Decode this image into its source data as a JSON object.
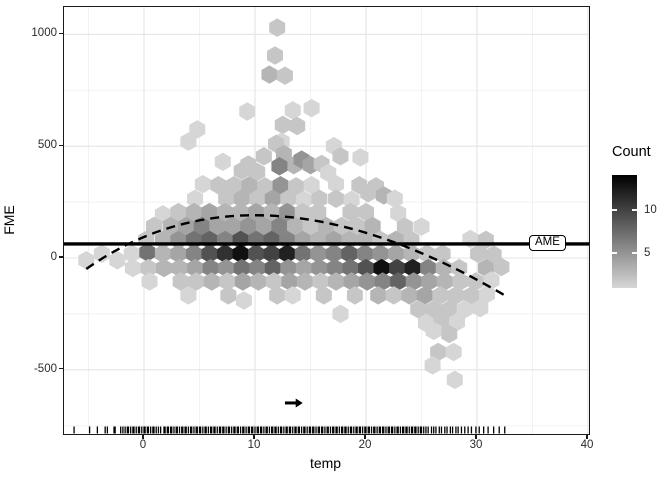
{
  "chart_data": {
    "type": "hexbin",
    "title": "",
    "xlabel": "temp",
    "ylabel": "FME",
    "x_major_ticks": [
      0,
      10,
      20,
      30,
      40
    ],
    "x_minor_ticks": [
      -5,
      5,
      15,
      25,
      35
    ],
    "y_major_ticks": [
      1000,
      500,
      0,
      -500
    ],
    "y_minor_ticks": [
      750,
      250,
      -250,
      -750
    ],
    "xlim": [
      -7.2,
      40.1
    ],
    "ylim": [
      -790,
      1120
    ],
    "grid": "on",
    "legend": {
      "title": "Count",
      "position": "right",
      "ticks": [
        10,
        5
      ],
      "domain": [
        1,
        14
      ],
      "color_low": "#d6d6d6",
      "color_high": "#000000"
    },
    "ame_line": {
      "label": "AME",
      "value": 63,
      "style": "solid",
      "color": "#000000"
    },
    "smooth_curve": {
      "style": "dashed",
      "color": "#000000",
      "points": [
        [
          -5.2,
          -49
        ],
        [
          11.9,
          188
        ],
        [
          32.6,
          -170
        ]
      ]
    },
    "arrow_annotation": {
      "x1": 12.7,
      "x2": 14.3,
      "y": -648,
      "direction": "right"
    },
    "hexbins": [
      [
        12.0,
        1030,
        2
      ],
      [
        11.8,
        905,
        2
      ],
      [
        11.3,
        820,
        3
      ],
      [
        12.7,
        815,
        2
      ],
      [
        9.3,
        655,
        1
      ],
      [
        13.4,
        660,
        1
      ],
      [
        12.5,
        595,
        2
      ],
      [
        13.8,
        590,
        2
      ],
      [
        12.4,
        520,
        1
      ],
      [
        15.1,
        670,
        1
      ],
      [
        4.8,
        575,
        1
      ],
      [
        4.0,
        520,
        1
      ],
      [
        11.9,
        510,
        2
      ],
      [
        12.6,
        465,
        3
      ],
      [
        7.1,
        430,
        1
      ],
      [
        9.4,
        418,
        2
      ],
      [
        10.8,
        455,
        2
      ],
      [
        13.5,
        415,
        3
      ],
      [
        14.2,
        440,
        5
      ],
      [
        15.0,
        415,
        4
      ],
      [
        16.0,
        420,
        2
      ],
      [
        17.1,
        500,
        1
      ],
      [
        17.7,
        455,
        2
      ],
      [
        12.2,
        410,
        6
      ],
      [
        19.5,
        450,
        1
      ],
      [
        5.3,
        330,
        1
      ],
      [
        6.7,
        325,
        2
      ],
      [
        8.1,
        325,
        2
      ],
      [
        9.5,
        325,
        3
      ],
      [
        10.9,
        320,
        2
      ],
      [
        12.3,
        325,
        5
      ],
      [
        13.7,
        320,
        2
      ],
      [
        15.1,
        325,
        1
      ],
      [
        17.3,
        330,
        1
      ],
      [
        19.4,
        325,
        2
      ],
      [
        20.9,
        320,
        2
      ],
      [
        8.8,
        390,
        2
      ],
      [
        10.2,
        385,
        2
      ],
      [
        16.6,
        380,
        1
      ],
      [
        4.6,
        265,
        1
      ],
      [
        7.4,
        265,
        2
      ],
      [
        8.8,
        265,
        3
      ],
      [
        10.2,
        265,
        2
      ],
      [
        11.6,
        265,
        4
      ],
      [
        13.0,
        265,
        2
      ],
      [
        14.4,
        260,
        1
      ],
      [
        15.8,
        265,
        2
      ],
      [
        17.3,
        265,
        2
      ],
      [
        18.7,
        260,
        1
      ],
      [
        20.2,
        290,
        2
      ],
      [
        21.6,
        280,
        3
      ],
      [
        22.6,
        265,
        1
      ],
      [
        1.7,
        195,
        1
      ],
      [
        3.1,
        205,
        2
      ],
      [
        4.5,
        205,
        3
      ],
      [
        5.9,
        205,
        4
      ],
      [
        7.3,
        205,
        3
      ],
      [
        8.7,
        205,
        3
      ],
      [
        10.1,
        205,
        4
      ],
      [
        11.5,
        205,
        3
      ],
      [
        12.9,
        205,
        5
      ],
      [
        14.3,
        205,
        2
      ],
      [
        15.7,
        205,
        2
      ],
      [
        18.6,
        205,
        2
      ],
      [
        20.0,
        205,
        2
      ],
      [
        22.9,
        200,
        1
      ],
      [
        0.9,
        143,
        2
      ],
      [
        2.4,
        143,
        3
      ],
      [
        3.8,
        143,
        4
      ],
      [
        5.2,
        143,
        6
      ],
      [
        6.6,
        143,
        4
      ],
      [
        8.0,
        143,
        4
      ],
      [
        9.4,
        143,
        5
      ],
      [
        10.8,
        143,
        4
      ],
      [
        12.2,
        143,
        6
      ],
      [
        13.6,
        143,
        3
      ],
      [
        15.0,
        143,
        2
      ],
      [
        16.4,
        143,
        3
      ],
      [
        17.8,
        143,
        2
      ],
      [
        19.2,
        143,
        2
      ],
      [
        20.6,
        143,
        3
      ],
      [
        23.5,
        140,
        2
      ],
      [
        25.0,
        140,
        1
      ],
      [
        0.2,
        81,
        2
      ],
      [
        1.7,
        81,
        3
      ],
      [
        3.1,
        81,
        5
      ],
      [
        4.5,
        81,
        7
      ],
      [
        5.9,
        81,
        8
      ],
      [
        7.3,
        81,
        6
      ],
      [
        8.7,
        81,
        9
      ],
      [
        10.1,
        81,
        7
      ],
      [
        11.5,
        81,
        8
      ],
      [
        12.9,
        81,
        6
      ],
      [
        14.3,
        81,
        4
      ],
      [
        15.7,
        81,
        3
      ],
      [
        17.1,
        81,
        4
      ],
      [
        18.5,
        81,
        3
      ],
      [
        19.9,
        81,
        3
      ],
      [
        21.3,
        81,
        2
      ],
      [
        22.7,
        81,
        3
      ],
      [
        24.1,
        81,
        2
      ],
      [
        29.4,
        85,
        1
      ],
      [
        30.8,
        81,
        2
      ],
      [
        -3.8,
        19,
        1
      ],
      [
        -1.1,
        19,
        1
      ],
      [
        0.3,
        25,
        7
      ],
      [
        1.7,
        19,
        3
      ],
      [
        3.1,
        19,
        4
      ],
      [
        4.5,
        19,
        6
      ],
      [
        5.9,
        19,
        9
      ],
      [
        7.3,
        19,
        11
      ],
      [
        8.7,
        19,
        13
      ],
      [
        10.1,
        19,
        9
      ],
      [
        11.5,
        19,
        10
      ],
      [
        12.9,
        19,
        12
      ],
      [
        14.3,
        19,
        7
      ],
      [
        15.7,
        19,
        5
      ],
      [
        17.1,
        19,
        6
      ],
      [
        18.5,
        19,
        8
      ],
      [
        19.9,
        19,
        6
      ],
      [
        21.3,
        19,
        5
      ],
      [
        22.7,
        19,
        4
      ],
      [
        24.1,
        19,
        3
      ],
      [
        25.5,
        19,
        2
      ],
      [
        26.9,
        19,
        2
      ],
      [
        30.1,
        19,
        2
      ],
      [
        31.5,
        15,
        2
      ],
      [
        -5.2,
        -10,
        1
      ],
      [
        -2.4,
        -10,
        1
      ],
      [
        -1.0,
        -45,
        1
      ],
      [
        0.4,
        -45,
        2
      ],
      [
        1.8,
        -45,
        3
      ],
      [
        3.2,
        -45,
        3
      ],
      [
        4.6,
        -45,
        4
      ],
      [
        6.0,
        -45,
        6
      ],
      [
        7.4,
        -45,
        5
      ],
      [
        8.8,
        -45,
        7
      ],
      [
        10.2,
        -45,
        6
      ],
      [
        11.6,
        -45,
        8
      ],
      [
        13.0,
        -45,
        5
      ],
      [
        14.4,
        -45,
        4
      ],
      [
        15.8,
        -45,
        5
      ],
      [
        17.2,
        -45,
        6
      ],
      [
        18.6,
        -45,
        7
      ],
      [
        20.0,
        -45,
        9
      ],
      [
        21.4,
        -45,
        13
      ],
      [
        22.8,
        -45,
        10
      ],
      [
        24.2,
        -45,
        12
      ],
      [
        25.6,
        -45,
        6
      ],
      [
        27.0,
        -45,
        3
      ],
      [
        28.4,
        -45,
        2
      ],
      [
        30.8,
        -45,
        3
      ],
      [
        32.2,
        -40,
        2
      ],
      [
        0.5,
        -105,
        1
      ],
      [
        3.3,
        -105,
        2
      ],
      [
        4.7,
        -105,
        2
      ],
      [
        6.1,
        -105,
        3
      ],
      [
        7.5,
        -105,
        2
      ],
      [
        8.9,
        -105,
        4
      ],
      [
        10.3,
        -105,
        3
      ],
      [
        11.7,
        -105,
        2
      ],
      [
        13.1,
        -105,
        4
      ],
      [
        14.5,
        -105,
        3
      ],
      [
        15.9,
        -105,
        2
      ],
      [
        17.3,
        -105,
        3
      ],
      [
        18.7,
        -105,
        4
      ],
      [
        20.1,
        -105,
        5
      ],
      [
        21.5,
        -105,
        6
      ],
      [
        22.9,
        -105,
        8
      ],
      [
        24.3,
        -105,
        5
      ],
      [
        25.7,
        -105,
        4
      ],
      [
        27.1,
        -105,
        3
      ],
      [
        28.5,
        -105,
        2
      ],
      [
        29.9,
        -105,
        2
      ],
      [
        31.3,
        -100,
        1
      ],
      [
        4.0,
        -167,
        1
      ],
      [
        7.6,
        -167,
        2
      ],
      [
        12.0,
        -167,
        2
      ],
      [
        13.4,
        -167,
        1
      ],
      [
        16.2,
        -167,
        2
      ],
      [
        19.0,
        -167,
        2
      ],
      [
        21.1,
        -167,
        3
      ],
      [
        22.5,
        -167,
        2
      ],
      [
        23.9,
        -167,
        3
      ],
      [
        25.3,
        -167,
        4
      ],
      [
        26.7,
        -167,
        2
      ],
      [
        28.1,
        -167,
        2
      ],
      [
        29.5,
        -167,
        2
      ],
      [
        30.9,
        -162,
        1
      ],
      [
        9.0,
        -190,
        1
      ],
      [
        17.7,
        -250,
        1
      ],
      [
        24.7,
        -229,
        2
      ],
      [
        26.1,
        -229,
        2
      ],
      [
        27.5,
        -229,
        2
      ],
      [
        28.9,
        -229,
        1
      ],
      [
        30.3,
        -224,
        1
      ],
      [
        25.4,
        -291,
        1
      ],
      [
        26.8,
        -291,
        2
      ],
      [
        28.2,
        -286,
        1
      ],
      [
        26.1,
        -326,
        1
      ],
      [
        27.5,
        -340,
        2
      ],
      [
        26.5,
        -420,
        2
      ],
      [
        27.9,
        -420,
        1
      ],
      [
        26.0,
        -480,
        1
      ],
      [
        28.0,
        -545,
        1
      ]
    ],
    "rug_x": [
      -6.3,
      -4.9,
      -4.2,
      -3.5,
      -3.3,
      -2.7,
      -2.6,
      -2.1,
      -1.9,
      -1.7,
      -1.5,
      -1.4,
      -1.2,
      -1.0,
      -0.9,
      -0.7,
      -0.5,
      -0.4,
      -0.2,
      0.0,
      0.1,
      0.3,
      0.4,
      0.6,
      0.8,
      0.9,
      1.1,
      1.3,
      1.5,
      1.8,
      1.9,
      2.1,
      2.2,
      2.4,
      2.5,
      2.7,
      2.9,
      3.0,
      3.2,
      3.4,
      3.5,
      3.7,
      3.8,
      4.0,
      4.2,
      4.3,
      4.5,
      4.7,
      4.8,
      5.0,
      5.1,
      5.3,
      5.5,
      5.6,
      5.8,
      6.0,
      6.1,
      6.3,
      6.4,
      6.6,
      6.8,
      6.9,
      7.1,
      7.2,
      7.4,
      7.6,
      7.7,
      7.9,
      8.1,
      8.2,
      8.4,
      8.5,
      8.7,
      8.9,
      9.0,
      9.2,
      9.4,
      9.5,
      9.7,
      9.8,
      10.0,
      10.2,
      10.3,
      10.5,
      10.6,
      10.8,
      11.0,
      11.1,
      11.3,
      11.5,
      11.6,
      11.8,
      11.9,
      12.1,
      12.3,
      12.4,
      12.6,
      12.8,
      12.9,
      13.1,
      13.2,
      13.4,
      13.6,
      13.7,
      13.9,
      14.0,
      14.2,
      14.4,
      14.5,
      14.7,
      14.9,
      15.0,
      15.2,
      15.3,
      15.5,
      15.7,
      15.8,
      16.0,
      16.1,
      16.3,
      16.5,
      16.6,
      16.8,
      17.0,
      17.1,
      17.3,
      17.4,
      17.6,
      17.8,
      17.9,
      18.1,
      18.2,
      18.4,
      18.6,
      18.7,
      18.9,
      19.1,
      19.2,
      19.4,
      19.5,
      19.7,
      19.9,
      20.0,
      20.2,
      20.3,
      20.5,
      20.7,
      20.8,
      21.0,
      21.2,
      21.3,
      21.5,
      21.6,
      21.8,
      22.0,
      22.1,
      22.3,
      22.4,
      22.6,
      22.8,
      22.9,
      23.1,
      23.3,
      23.4,
      23.6,
      23.7,
      23.9,
      24.1,
      24.2,
      24.4,
      24.5,
      24.7,
      24.9,
      25.0,
      25.2,
      25.4,
      25.6,
      25.9,
      26.1,
      26.3,
      26.6,
      26.8,
      27.1,
      27.3,
      27.6,
      27.8,
      28.1,
      28.3,
      28.6,
      28.9,
      29.2,
      29.5,
      29.9,
      30.2,
      30.6,
      31.0,
      31.5,
      32.0,
      32.5
    ]
  }
}
